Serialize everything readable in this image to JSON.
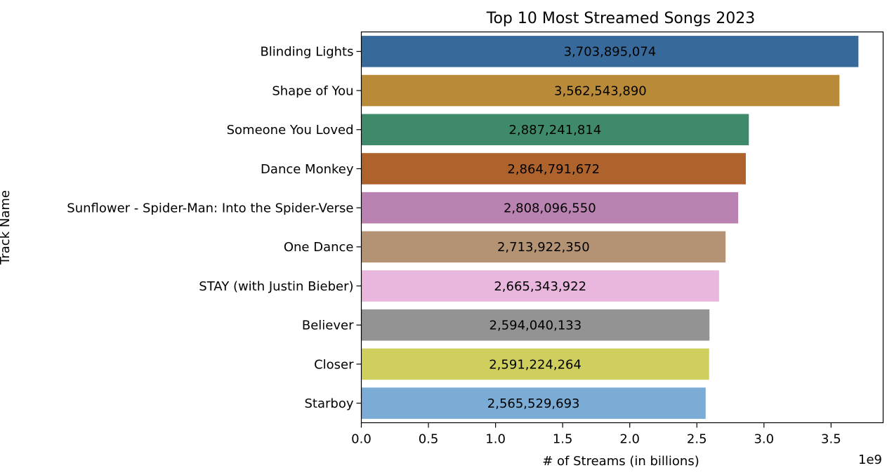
{
  "chart_data": {
    "type": "bar",
    "orientation": "horizontal",
    "title": "Top 10 Most Streamed Songs 2023",
    "xlabel": "# of Streams (in billions)",
    "ylabel": "Track Name",
    "x_offset_text": "1e9",
    "xlim": [
      0,
      3888000000
    ],
    "xticks": [
      0,
      500000000,
      1000000000,
      1500000000,
      2000000000,
      2500000000,
      3000000000,
      3500000000
    ],
    "xtick_labels": [
      "0.0",
      "0.5",
      "1.0",
      "1.5",
      "2.0",
      "2.5",
      "3.0",
      "3.5"
    ],
    "grid": false,
    "categories": [
      "Blinding Lights",
      "Shape of You",
      "Someone You Loved",
      "Dance Monkey",
      "Sunflower - Spider-Man: Into the Spider-Verse",
      "One Dance",
      "STAY (with Justin Bieber)",
      "Believer",
      "Closer",
      "Starboy"
    ],
    "values": [
      3703895074,
      3562543890,
      2887241814,
      2864791672,
      2808096550,
      2713922350,
      2665343922,
      2594040133,
      2591224264,
      2565529693
    ],
    "data_labels": [
      "3,703,895,074",
      "3,562,543,890",
      "2,887,241,814",
      "2,864,791,672",
      "2,808,096,550",
      "2,713,922,350",
      "2,665,343,922",
      "2,594,040,133",
      "2,591,224,264",
      "2,565,529,693"
    ],
    "colors": [
      "#376a9a",
      "#b98b38",
      "#3e8a6a",
      "#ae632d",
      "#ba82b0",
      "#b39373",
      "#e9b6de",
      "#939393",
      "#cfcf5e",
      "#7aacd6"
    ]
  }
}
